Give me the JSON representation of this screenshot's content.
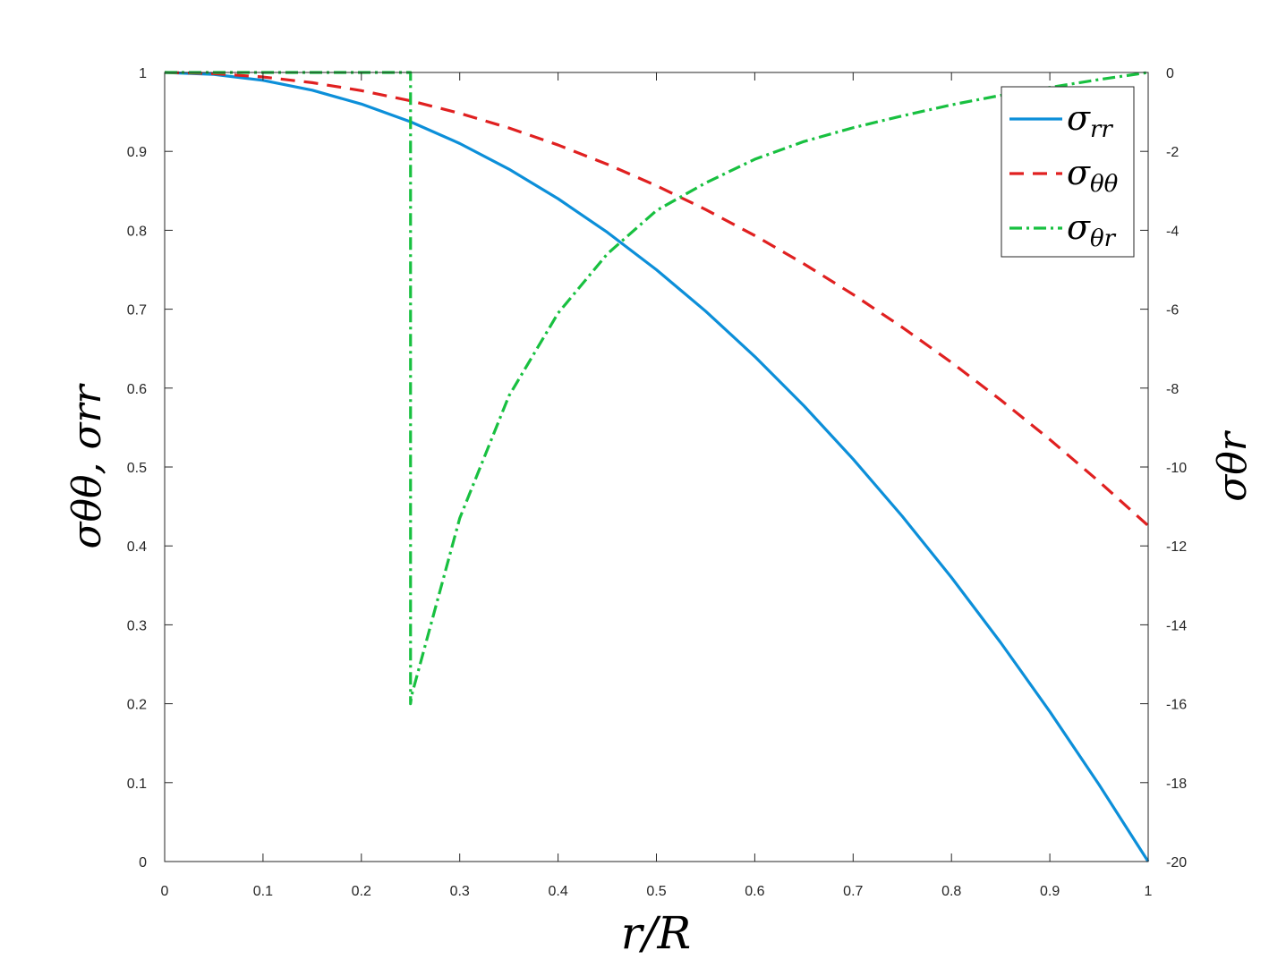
{
  "chart_data": {
    "type": "line",
    "xlabel": "r/R",
    "ylabel_left": "σθθ, σrr",
    "ylabel_right": "σθr",
    "xlim": [
      0,
      1
    ],
    "ylim_left": [
      0,
      1
    ],
    "ylim_right": [
      -20,
      0
    ],
    "x_ticks": [
      "0",
      "0.1",
      "0.2",
      "0.3",
      "0.4",
      "0.5",
      "0.6",
      "0.7",
      "0.8",
      "0.9",
      "1"
    ],
    "y_left_ticks": [
      "0",
      "0.1",
      "0.2",
      "0.3",
      "0.4",
      "0.5",
      "0.6",
      "0.7",
      "0.8",
      "0.9",
      "1"
    ],
    "y_right_ticks": [
      "-20",
      "-18",
      "-16",
      "-14",
      "-12",
      "-10",
      "-8",
      "-6",
      "-4",
      "-2",
      "0"
    ],
    "grid": false,
    "legend_position": "top-right",
    "legend": [
      {
        "base": "σ",
        "sub": "rr",
        "color": "#0c8fd9",
        "dash": "solid"
      },
      {
        "base": "σ",
        "sub": "θθ",
        "color": "#e02020",
        "dash": "dashed"
      },
      {
        "base": "σ",
        "sub": "θr",
        "color": "#18c040",
        "dash": "dashdot"
      }
    ],
    "series": [
      {
        "axis": "left",
        "color": "#0c8fd9",
        "dash": "solid",
        "x": [
          0,
          0.05,
          0.1,
          0.15,
          0.2,
          0.25,
          0.3,
          0.35,
          0.4,
          0.45,
          0.5,
          0.55,
          0.6,
          0.65,
          0.7,
          0.75,
          0.8,
          0.85,
          0.9,
          0.95,
          1
        ],
        "y": [
          1,
          0.9975,
          0.99,
          0.9775,
          0.96,
          0.9375,
          0.91,
          0.8775,
          0.84,
          0.7975,
          0.75,
          0.6975,
          0.64,
          0.5775,
          0.51,
          0.4375,
          0.36,
          0.2775,
          0.19,
          0.0975,
          0
        ]
      },
      {
        "axis": "left",
        "color": "#e02020",
        "dash": "dashed",
        "x": [
          0,
          0.05,
          0.1,
          0.15,
          0.2,
          0.25,
          0.3,
          0.35,
          0.4,
          0.45,
          0.5,
          0.55,
          0.6,
          0.65,
          0.7,
          0.75,
          0.8,
          0.85,
          0.9,
          0.95,
          1
        ],
        "y": [
          1,
          0.9986,
          0.9943,
          0.9871,
          0.977,
          0.9641,
          0.9483,
          0.9297,
          0.9081,
          0.8837,
          0.8565,
          0.8263,
          0.7933,
          0.7574,
          0.7186,
          0.677,
          0.6325,
          0.585,
          0.5348,
          0.4816,
          0.4256
        ]
      },
      {
        "axis": "right",
        "color": "#18c040",
        "dash": "dashdot",
        "x": [
          0,
          0.25,
          0.25,
          0.251,
          0.3,
          0.35,
          0.4,
          0.45,
          0.5,
          0.55,
          0.6,
          0.65,
          0.7,
          0.75,
          0.8,
          0.85,
          0.9,
          0.95,
          1
        ],
        "y": [
          0,
          0,
          -16,
          -15.8,
          -11.3,
          -8.2,
          -6.1,
          -4.6,
          -3.5,
          -2.8,
          -2.2,
          -1.75,
          -1.4,
          -1.1,
          -0.82,
          -0.58,
          -0.38,
          -0.18,
          0
        ]
      }
    ]
  }
}
